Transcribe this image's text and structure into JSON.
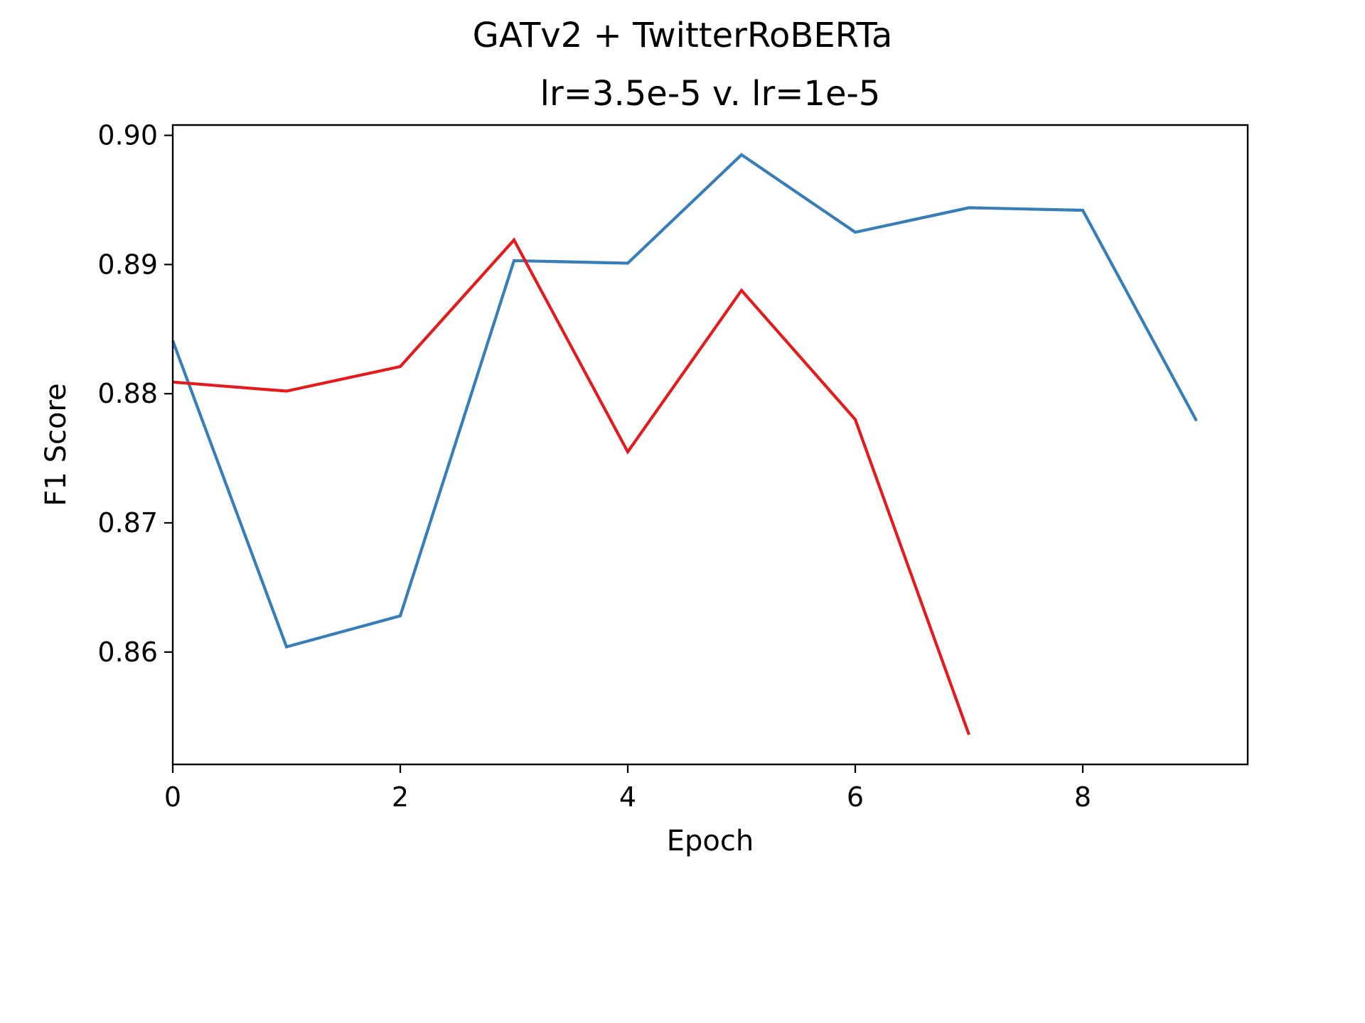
{
  "chart_data": {
    "type": "line",
    "title": "GATv2 + TwitterRoBERTa",
    "subtitle": "lr=3.5e-5 v. lr=1e-5",
    "xlabel": "Epoch",
    "ylabel": "F1 Score",
    "xlim": [
      0,
      9.45
    ],
    "ylim": [
      0.8513,
      0.9008
    ],
    "xticks": [
      0,
      2,
      4,
      6,
      8
    ],
    "xtick_labels": [
      "0",
      "2",
      "4",
      "6",
      "8"
    ],
    "yticks": [
      0.86,
      0.87,
      0.88,
      0.89,
      0.9
    ],
    "ytick_labels": [
      "0.86",
      "0.87",
      "0.88",
      "0.89",
      "0.90"
    ],
    "grid": false,
    "legend": "none",
    "series": [
      {
        "color": "#377eb8",
        "x": [
          0,
          1,
          2,
          3,
          4,
          5,
          6,
          7,
          8,
          9
        ],
        "y": [
          0.8841,
          0.8604,
          0.8628,
          0.8903,
          0.8901,
          0.8985,
          0.8925,
          0.8944,
          0.8942,
          0.8779
        ]
      },
      {
        "color": "#e41a1c",
        "x": [
          0,
          1,
          2,
          3,
          4,
          5,
          6,
          7
        ],
        "y": [
          0.8809,
          0.8802,
          0.8821,
          0.8919,
          0.8755,
          0.888,
          0.878,
          0.8536
        ]
      }
    ]
  }
}
